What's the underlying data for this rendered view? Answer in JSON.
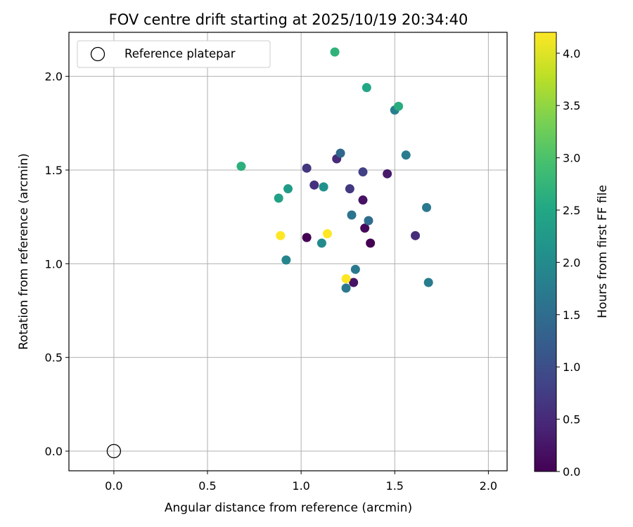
{
  "chart_data": {
    "type": "scatter",
    "title": "FOV centre drift starting at 2025/10/19 20:34:40",
    "xlabel": "Angular distance from reference (arcmin)",
    "ylabel": "Rotation from reference (arcmin)",
    "xlim": [
      -0.24,
      2.1
    ],
    "ylim": [
      -0.105,
      2.235
    ],
    "xticks": [
      0.0,
      0.5,
      1.0,
      1.5,
      2.0
    ],
    "yticks": [
      0.0,
      0.5,
      1.0,
      1.5,
      2.0
    ],
    "xtick_labels": [
      "0.0",
      "0.5",
      "1.0",
      "1.5",
      "2.0"
    ],
    "ytick_labels": [
      "0.0",
      "0.5",
      "1.0",
      "1.5",
      "2.0"
    ],
    "grid": true,
    "legend": {
      "position": "top-left",
      "entries": [
        "Reference platepar"
      ]
    },
    "reference_point": {
      "x": 0.0,
      "y": 0.0,
      "label": "Reference platepar"
    },
    "colorbar": {
      "label": "Hours from first FF file",
      "range": [
        0.0,
        4.2
      ],
      "colormap": "viridis",
      "ticks": [
        0.0,
        0.5,
        1.0,
        1.5,
        2.0,
        2.5,
        3.0,
        3.5,
        4.0
      ],
      "tick_labels": [
        "0.0",
        "0.5",
        "1.0",
        "1.5",
        "2.0",
        "2.5",
        "3.0",
        "3.5",
        "4.0"
      ]
    },
    "points": [
      {
        "x": 1.03,
        "y": 1.14,
        "c": 0.0
      },
      {
        "x": 1.37,
        "y": 1.11,
        "c": 0.0
      },
      {
        "x": 1.34,
        "y": 1.19,
        "c": 0.1
      },
      {
        "x": 1.28,
        "y": 0.9,
        "c": 0.2
      },
      {
        "x": 1.33,
        "y": 1.34,
        "c": 0.2
      },
      {
        "x": 1.46,
        "y": 1.48,
        "c": 0.3
      },
      {
        "x": 1.19,
        "y": 1.56,
        "c": 0.5
      },
      {
        "x": 1.61,
        "y": 1.15,
        "c": 0.55
      },
      {
        "x": 1.07,
        "y": 1.42,
        "c": 0.6
      },
      {
        "x": 1.03,
        "y": 1.51,
        "c": 0.65
      },
      {
        "x": 1.26,
        "y": 1.4,
        "c": 0.7
      },
      {
        "x": 1.33,
        "y": 1.49,
        "c": 0.8
      },
      {
        "x": 1.21,
        "y": 1.59,
        "c": 1.4
      },
      {
        "x": 1.36,
        "y": 1.23,
        "c": 1.5
      },
      {
        "x": 1.27,
        "y": 1.26,
        "c": 1.6
      },
      {
        "x": 1.29,
        "y": 0.97,
        "c": 1.7
      },
      {
        "x": 1.24,
        "y": 0.87,
        "c": 1.7
      },
      {
        "x": 1.67,
        "y": 1.3,
        "c": 1.7
      },
      {
        "x": 1.68,
        "y": 0.9,
        "c": 1.75
      },
      {
        "x": 1.56,
        "y": 1.58,
        "c": 1.75
      },
      {
        "x": 1.5,
        "y": 1.82,
        "c": 1.8
      },
      {
        "x": 0.92,
        "y": 1.02,
        "c": 1.9
      },
      {
        "x": 1.11,
        "y": 1.11,
        "c": 2.0
      },
      {
        "x": 1.12,
        "y": 1.41,
        "c": 2.1
      },
      {
        "x": 0.93,
        "y": 1.4,
        "c": 2.3
      },
      {
        "x": 0.88,
        "y": 1.35,
        "c": 2.4
      },
      {
        "x": 1.35,
        "y": 1.94,
        "c": 2.5
      },
      {
        "x": 1.52,
        "y": 1.84,
        "c": 2.6
      },
      {
        "x": 0.68,
        "y": 1.52,
        "c": 2.65
      },
      {
        "x": 1.18,
        "y": 2.13,
        "c": 2.7
      },
      {
        "x": 0.89,
        "y": 1.15,
        "c": 4.2
      },
      {
        "x": 1.14,
        "y": 1.16,
        "c": 4.2
      },
      {
        "x": 1.24,
        "y": 0.92,
        "c": 4.2
      }
    ]
  }
}
